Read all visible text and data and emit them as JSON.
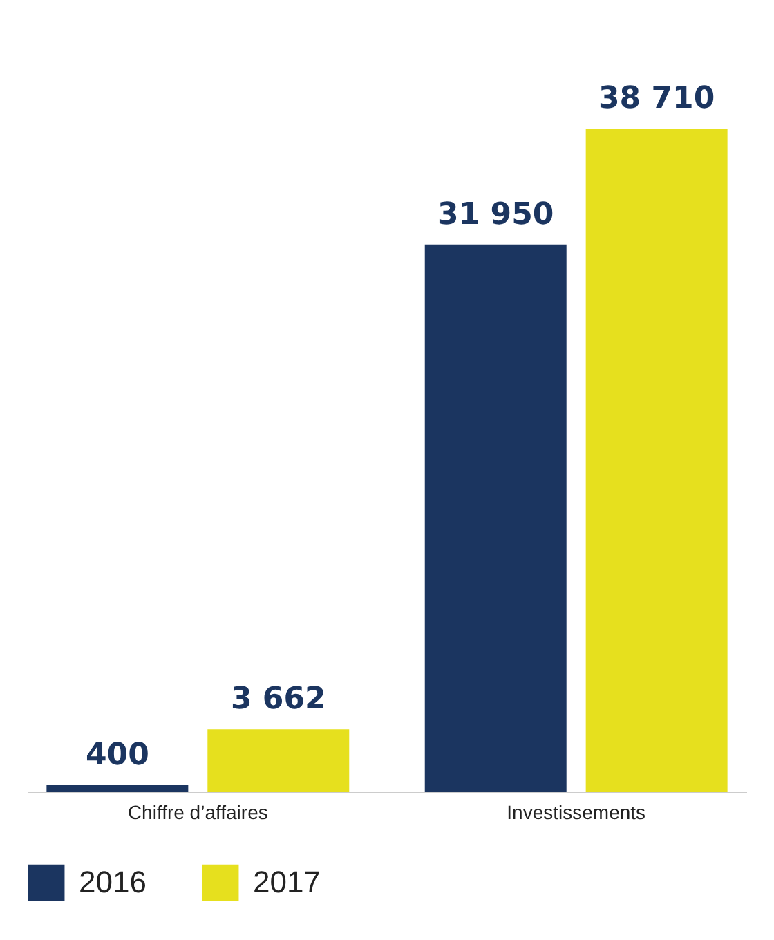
{
  "chart_data": {
    "type": "bar",
    "categories": [
      "Chiffre d’affaires",
      "Investissements"
    ],
    "series": [
      {
        "name": "2016",
        "color": "#1b3560",
        "values": [
          400,
          31950
        ],
        "value_labels": [
          "400",
          "31 950"
        ]
      },
      {
        "name": "2017",
        "color": "#e6e01e",
        "values": [
          3662,
          38710
        ],
        "value_labels": [
          "3 662",
          "38 710"
        ]
      }
    ],
    "legend": "bottom"
  }
}
